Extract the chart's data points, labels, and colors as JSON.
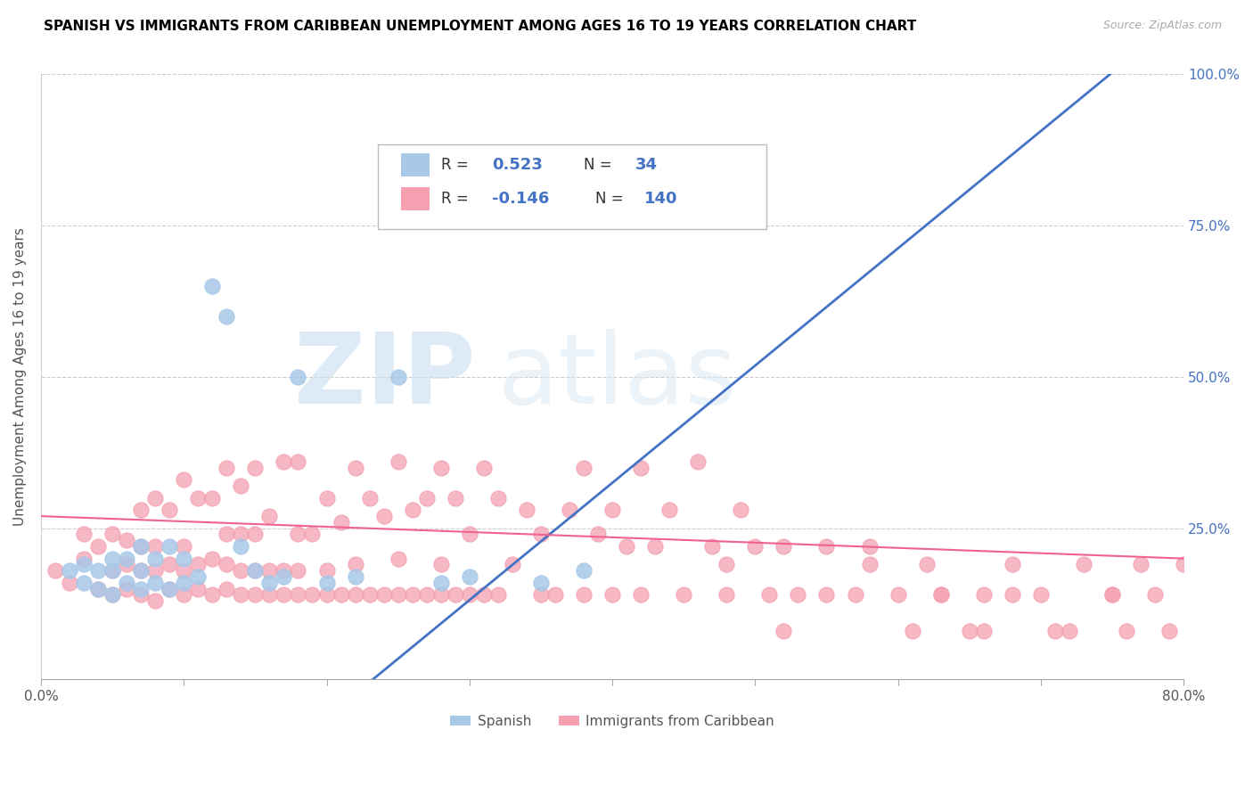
{
  "title": "SPANISH VS IMMIGRANTS FROM CARIBBEAN UNEMPLOYMENT AMONG AGES 16 TO 19 YEARS CORRELATION CHART",
  "source": "Source: ZipAtlas.com",
  "ylabel": "Unemployment Among Ages 16 to 19 years",
  "xlim": [
    0.0,
    0.8
  ],
  "ylim": [
    0.0,
    1.0
  ],
  "xticks": [
    0.0,
    0.1,
    0.2,
    0.3,
    0.4,
    0.5,
    0.6,
    0.7,
    0.8
  ],
  "xticklabels": [
    "0.0%",
    "",
    "",
    "",
    "",
    "",
    "",
    "",
    "80.0%"
  ],
  "yticks": [
    0.0,
    0.25,
    0.5,
    0.75,
    1.0
  ],
  "yticklabels_right": [
    "",
    "25.0%",
    "50.0%",
    "75.0%",
    "100.0%"
  ],
  "blue_color": "#a8c8e8",
  "pink_color": "#f4a0b0",
  "line_blue": "#4472c4",
  "line_pink": "#f06292",
  "legend_label_blue": "Spanish",
  "legend_label_pink": "Immigrants from Caribbean",
  "blue_line_x": [
    0.0,
    0.8
  ],
  "blue_line_y": [
    -0.45,
    1.1
  ],
  "pink_line_x": [
    0.0,
    0.8
  ],
  "pink_line_y": [
    0.27,
    0.2
  ],
  "blue_points_x": [
    0.02,
    0.03,
    0.03,
    0.04,
    0.04,
    0.05,
    0.05,
    0.05,
    0.06,
    0.06,
    0.07,
    0.07,
    0.07,
    0.08,
    0.08,
    0.09,
    0.09,
    0.1,
    0.1,
    0.11,
    0.12,
    0.13,
    0.14,
    0.15,
    0.16,
    0.17,
    0.18,
    0.2,
    0.22,
    0.25,
    0.28,
    0.3,
    0.35,
    0.38
  ],
  "blue_points_y": [
    0.18,
    0.16,
    0.19,
    0.15,
    0.18,
    0.14,
    0.18,
    0.2,
    0.16,
    0.2,
    0.15,
    0.18,
    0.22,
    0.16,
    0.2,
    0.15,
    0.22,
    0.16,
    0.2,
    0.17,
    0.65,
    0.6,
    0.22,
    0.18,
    0.16,
    0.17,
    0.5,
    0.16,
    0.17,
    0.5,
    0.16,
    0.17,
    0.16,
    0.18
  ],
  "pink_points_x": [
    0.01,
    0.02,
    0.03,
    0.03,
    0.04,
    0.04,
    0.05,
    0.05,
    0.05,
    0.06,
    0.06,
    0.06,
    0.07,
    0.07,
    0.07,
    0.07,
    0.08,
    0.08,
    0.08,
    0.08,
    0.09,
    0.09,
    0.09,
    0.1,
    0.1,
    0.1,
    0.1,
    0.11,
    0.11,
    0.11,
    0.12,
    0.12,
    0.12,
    0.13,
    0.13,
    0.13,
    0.13,
    0.14,
    0.14,
    0.14,
    0.14,
    0.15,
    0.15,
    0.15,
    0.15,
    0.16,
    0.16,
    0.16,
    0.17,
    0.17,
    0.17,
    0.18,
    0.18,
    0.18,
    0.18,
    0.19,
    0.19,
    0.2,
    0.2,
    0.2,
    0.21,
    0.21,
    0.22,
    0.22,
    0.22,
    0.23,
    0.23,
    0.24,
    0.24,
    0.25,
    0.25,
    0.25,
    0.26,
    0.26,
    0.27,
    0.27,
    0.28,
    0.28,
    0.28,
    0.29,
    0.29,
    0.3,
    0.3,
    0.31,
    0.31,
    0.32,
    0.32,
    0.33,
    0.34,
    0.35,
    0.35,
    0.36,
    0.37,
    0.38,
    0.38,
    0.39,
    0.4,
    0.4,
    0.41,
    0.42,
    0.42,
    0.43,
    0.44,
    0.45,
    0.46,
    0.47,
    0.48,
    0.49,
    0.5,
    0.51,
    0.52,
    0.53,
    0.55,
    0.57,
    0.58,
    0.6,
    0.62,
    0.63,
    0.65,
    0.66,
    0.68,
    0.7,
    0.71,
    0.73,
    0.75,
    0.76,
    0.77,
    0.78,
    0.79,
    0.8,
    0.48,
    0.52,
    0.55,
    0.58,
    0.61,
    0.63,
    0.66,
    0.68,
    0.72,
    0.75
  ],
  "pink_points_y": [
    0.18,
    0.16,
    0.2,
    0.24,
    0.15,
    0.22,
    0.14,
    0.18,
    0.24,
    0.15,
    0.19,
    0.23,
    0.14,
    0.18,
    0.22,
    0.28,
    0.13,
    0.18,
    0.22,
    0.3,
    0.15,
    0.19,
    0.28,
    0.14,
    0.18,
    0.22,
    0.33,
    0.15,
    0.19,
    0.3,
    0.14,
    0.2,
    0.3,
    0.15,
    0.19,
    0.24,
    0.35,
    0.14,
    0.18,
    0.24,
    0.32,
    0.14,
    0.18,
    0.24,
    0.35,
    0.14,
    0.18,
    0.27,
    0.14,
    0.18,
    0.36,
    0.14,
    0.18,
    0.24,
    0.36,
    0.14,
    0.24,
    0.14,
    0.18,
    0.3,
    0.14,
    0.26,
    0.14,
    0.19,
    0.35,
    0.14,
    0.3,
    0.14,
    0.27,
    0.14,
    0.2,
    0.36,
    0.14,
    0.28,
    0.14,
    0.3,
    0.14,
    0.19,
    0.35,
    0.14,
    0.3,
    0.14,
    0.24,
    0.14,
    0.35,
    0.14,
    0.3,
    0.19,
    0.28,
    0.14,
    0.24,
    0.14,
    0.28,
    0.14,
    0.35,
    0.24,
    0.14,
    0.28,
    0.22,
    0.14,
    0.35,
    0.22,
    0.28,
    0.14,
    0.36,
    0.22,
    0.14,
    0.28,
    0.22,
    0.14,
    0.22,
    0.14,
    0.22,
    0.14,
    0.22,
    0.14,
    0.19,
    0.14,
    0.08,
    0.14,
    0.19,
    0.14,
    0.08,
    0.19,
    0.14,
    0.08,
    0.19,
    0.14,
    0.08,
    0.19,
    0.19,
    0.08,
    0.14,
    0.19,
    0.08,
    0.14,
    0.08,
    0.14,
    0.08,
    0.14
  ]
}
